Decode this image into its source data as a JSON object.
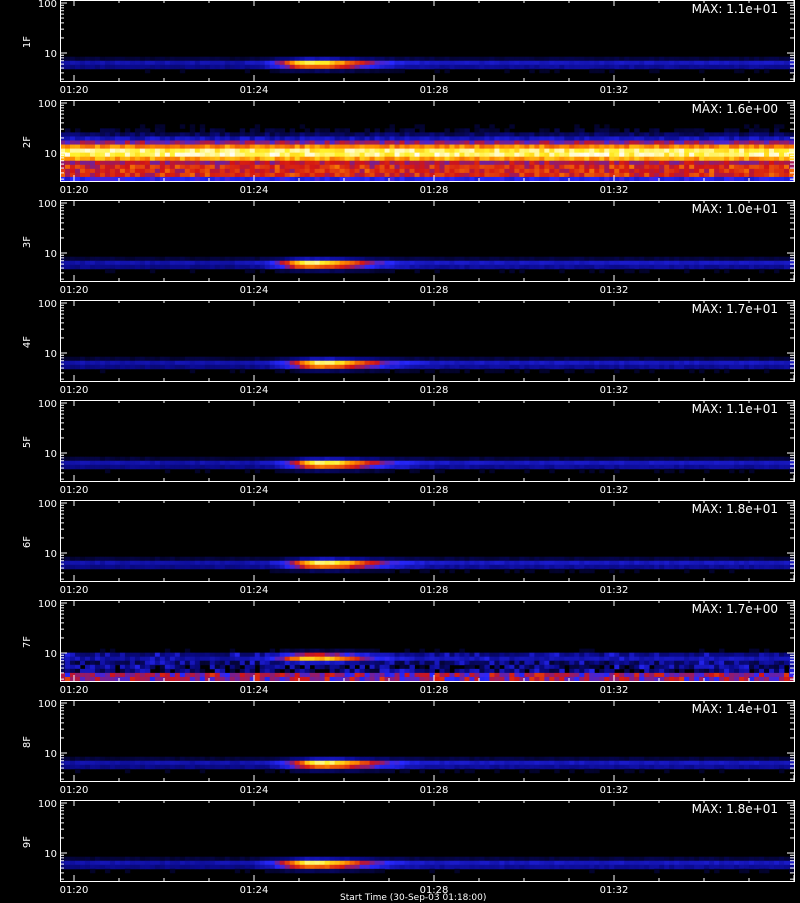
{
  "chart_data": [
    {
      "type": "heatmap",
      "ylabel": "1F",
      "max_label": "MAX: 1.1e+01",
      "y_ticks": [
        10,
        100
      ],
      "x_ticks": [
        "01:20",
        "01:24",
        "01:28",
        "01:32"
      ],
      "yscale": "log",
      "colormap": "black-blue-red-yellow-white",
      "feature": {
        "kind": "burst",
        "center_time": "01:25:15",
        "peak_y": 6
      }
    },
    {
      "type": "heatmap",
      "ylabel": "2F",
      "max_label": "MAX: 1.6e+00",
      "y_ticks": [
        10,
        100
      ],
      "x_ticks": [
        "01:20",
        "01:24",
        "01:28",
        "01:32"
      ],
      "yscale": "log",
      "colormap": "black-blue-red-yellow-white",
      "feature": {
        "kind": "band",
        "peak_y": 10
      }
    },
    {
      "type": "heatmap",
      "ylabel": "3F",
      "max_label": "MAX: 1.0e+01",
      "y_ticks": [
        10,
        100
      ],
      "x_ticks": [
        "01:20",
        "01:24",
        "01:28",
        "01:32"
      ],
      "yscale": "log",
      "colormap": "black-blue-red-yellow-white",
      "feature": {
        "kind": "burst",
        "center_time": "01:25:15",
        "peak_y": 6
      }
    },
    {
      "type": "heatmap",
      "ylabel": "4F",
      "max_label": "MAX: 1.7e+01",
      "y_ticks": [
        10,
        100
      ],
      "x_ticks": [
        "01:20",
        "01:24",
        "01:28",
        "01:32"
      ],
      "yscale": "log",
      "colormap": "black-blue-red-yellow-white",
      "feature": {
        "kind": "burst",
        "center_time": "01:25:30",
        "peak_y": 6
      }
    },
    {
      "type": "heatmap",
      "ylabel": "5F",
      "max_label": "MAX: 1.1e+01",
      "y_ticks": [
        10,
        100
      ],
      "x_ticks": [
        "01:20",
        "01:24",
        "01:28",
        "01:32"
      ],
      "yscale": "log",
      "colormap": "black-blue-red-yellow-white",
      "feature": {
        "kind": "burst",
        "center_time": "01:25:30",
        "peak_y": 6
      }
    },
    {
      "type": "heatmap",
      "ylabel": "6F",
      "max_label": "MAX: 1.8e+01",
      "y_ticks": [
        10,
        100
      ],
      "x_ticks": [
        "01:20",
        "01:24",
        "01:28",
        "01:32"
      ],
      "yscale": "log",
      "colormap": "black-blue-red-yellow-white",
      "feature": {
        "kind": "burst",
        "center_time": "01:25:30",
        "peak_y": 6
      }
    },
    {
      "type": "heatmap",
      "ylabel": "7F",
      "max_label": "MAX: 1.7e+00",
      "y_ticks": [
        10,
        100
      ],
      "x_ticks": [
        "01:20",
        "01:24",
        "01:28",
        "01:32"
      ],
      "yscale": "log",
      "colormap": "black-blue-red-yellow-white",
      "feature": {
        "kind": "burst_noisy",
        "center_time": "01:25:15",
        "peak_y": 8
      }
    },
    {
      "type": "heatmap",
      "ylabel": "8F",
      "max_label": "MAX: 1.4e+01",
      "y_ticks": [
        10,
        100
      ],
      "x_ticks": [
        "01:20",
        "01:24",
        "01:28",
        "01:32"
      ],
      "yscale": "log",
      "colormap": "black-blue-red-yellow-white",
      "feature": {
        "kind": "burst",
        "center_time": "01:25:30",
        "peak_y": 6
      }
    },
    {
      "type": "heatmap",
      "ylabel": "9F",
      "max_label": "MAX: 1.8e+01",
      "y_ticks": [
        10,
        100
      ],
      "x_ticks": [
        "01:20",
        "01:24",
        "01:28",
        "01:32"
      ],
      "yscale": "log",
      "colormap": "black-blue-red-yellow-white",
      "feature": {
        "kind": "burst",
        "center_time": "01:25:15",
        "peak_y": 6
      }
    }
  ],
  "footer": {
    "xlabel": "Start Time (30-Sep-03 01:18:00)"
  }
}
